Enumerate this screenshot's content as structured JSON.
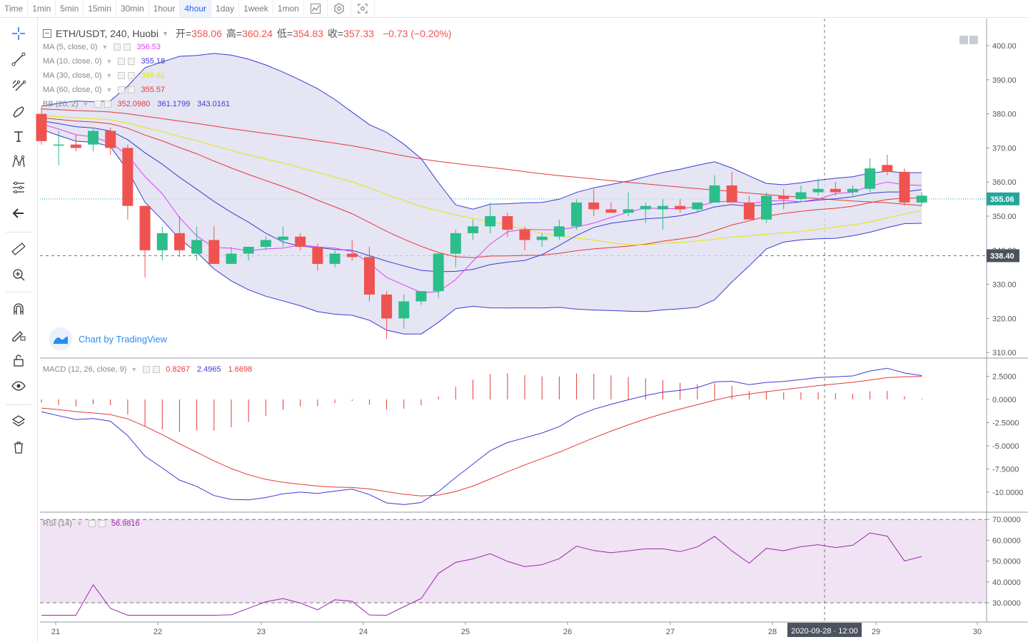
{
  "toolbar": {
    "timeframes": [
      {
        "label": "Time",
        "active": false
      },
      {
        "label": "1min",
        "active": false
      },
      {
        "label": "5min",
        "active": false
      },
      {
        "label": "15min",
        "active": false
      },
      {
        "label": "30min",
        "active": false
      },
      {
        "label": "1hour",
        "active": false
      },
      {
        "label": "4hour",
        "active": true
      },
      {
        "label": "1day",
        "active": false
      },
      {
        "label": "1week",
        "active": false
      },
      {
        "label": "1mon",
        "active": false
      }
    ],
    "icons": [
      "line-chart-icon",
      "settings-icon",
      "fullscreen-icon"
    ]
  },
  "sidebar_tools": [
    "crosshair-icon",
    "trend-line-icon",
    "fib-icon",
    "brush-icon",
    "text-icon",
    "pattern-icon",
    "measure-icon",
    "back-arrow-icon",
    "ruler-icon",
    "zoom-in-icon",
    "magnet-icon",
    "pencil-lock-icon",
    "unlock-icon",
    "eye-icon",
    "layers-icon",
    "trash-icon"
  ],
  "header": {
    "symbol": "ETH/USDT, 240, Huobi",
    "open_label": "开=",
    "open": "358.06",
    "high_label": "高=",
    "high": "360.24",
    "low_label": "低=",
    "low": "354.83",
    "close_label": "收=",
    "close": "357.33",
    "change": "−0.73 (−0.20%)"
  },
  "indicators": [
    {
      "name": "MA (5, close, 0)",
      "values": [
        "356.53"
      ],
      "colors": [
        "#e040fb"
      ]
    },
    {
      "name": "MA (10, close, 0)",
      "values": [
        "355.18"
      ],
      "colors": [
        "#3b3bd6"
      ]
    },
    {
      "name": "MA (30, close, 0)",
      "values": [
        "346.61"
      ],
      "colors": [
        "#e6e600"
      ]
    },
    {
      "name": "MA (60, close, 0)",
      "values": [
        "355.57"
      ],
      "colors": [
        "#e53935"
      ]
    },
    {
      "name": "BB (20, 2)",
      "values": [
        "352.0980",
        "361.1799",
        "343.0161"
      ],
      "colors": [
        "#e53935",
        "#3b3bd6",
        "#3b3bd6"
      ]
    }
  ],
  "watermark": "Chart by TradingView",
  "price_axis": {
    "ticks": [
      "400.00",
      "390.00",
      "380.00",
      "370.00",
      "360.00",
      "350.00",
      "340.00",
      "330.00",
      "320.00",
      "310.00"
    ],
    "current_price_label": "355.06",
    "crosshair_price_label": "338.40"
  },
  "macd": {
    "name": "MACD (12, 26, close, 9)",
    "values": [
      "0.8267",
      "2.4965",
      "1.6698"
    ],
    "ticks": [
      "2.5000",
      "0.0000",
      "-2.5000",
      "-5.0000",
      "-7.5000",
      "-10.0000"
    ]
  },
  "rsi": {
    "name": "RSI (14)",
    "value": "56.9816",
    "ticks": [
      "70.0000",
      "60.0000",
      "50.0000",
      "40.0000",
      "30.0000"
    ]
  },
  "time_axis": {
    "labels": [
      "21",
      "22",
      "23",
      "24",
      "25",
      "26",
      "27",
      "28",
      "29",
      "30"
    ],
    "crosshair_label": "2020-09-28 · 12:00"
  },
  "colors": {
    "up": "#26a69a",
    "up_fill": "#2bbd8a",
    "down": "#ef5350",
    "bb_fill": "#dcdcef",
    "rsi_band": "#f0e3f3",
    "accent": "#2962ff"
  },
  "chart_data": {
    "type": "candlestick",
    "interval": "4hour",
    "x_labels": [
      "21",
      "22",
      "23",
      "24",
      "25",
      "26",
      "27",
      "28",
      "29",
      "30"
    ],
    "ylim": [
      310,
      405
    ],
    "candles": [
      {
        "o": 380,
        "h": 382,
        "l": 371,
        "c": 372
      },
      {
        "o": 371,
        "h": 375,
        "l": 365,
        "c": 371
      },
      {
        "o": 371,
        "h": 374,
        "l": 369,
        "c": 370
      },
      {
        "o": 371,
        "h": 376,
        "l": 369,
        "c": 375
      },
      {
        "o": 375,
        "h": 376,
        "l": 368,
        "c": 370
      },
      {
        "o": 370,
        "h": 371,
        "l": 349,
        "c": 353
      },
      {
        "o": 353,
        "h": 353,
        "l": 332,
        "c": 340
      },
      {
        "o": 340,
        "h": 347,
        "l": 337,
        "c": 345
      },
      {
        "o": 345,
        "h": 350,
        "l": 338,
        "c": 340
      },
      {
        "o": 339,
        "h": 347,
        "l": 337,
        "c": 343
      },
      {
        "o": 343,
        "h": 347,
        "l": 336,
        "c": 336
      },
      {
        "o": 336,
        "h": 341,
        "l": 336,
        "c": 339
      },
      {
        "o": 339,
        "h": 341,
        "l": 337,
        "c": 341
      },
      {
        "o": 341,
        "h": 344,
        "l": 340,
        "c": 343
      },
      {
        "o": 343,
        "h": 347,
        "l": 341,
        "c": 344
      },
      {
        "o": 344,
        "h": 345,
        "l": 340,
        "c": 341
      },
      {
        "o": 341,
        "h": 342,
        "l": 334,
        "c": 336
      },
      {
        "o": 336,
        "h": 340,
        "l": 335,
        "c": 339
      },
      {
        "o": 339,
        "h": 343,
        "l": 337,
        "c": 338
      },
      {
        "o": 338,
        "h": 341,
        "l": 325,
        "c": 327
      },
      {
        "o": 327,
        "h": 328,
        "l": 314,
        "c": 320
      },
      {
        "o": 320,
        "h": 327,
        "l": 317,
        "c": 325
      },
      {
        "o": 325,
        "h": 328,
        "l": 324,
        "c": 328
      },
      {
        "o": 328,
        "h": 339,
        "l": 326,
        "c": 339
      },
      {
        "o": 339,
        "h": 346,
        "l": 335,
        "c": 345
      },
      {
        "o": 345,
        "h": 349,
        "l": 343,
        "c": 347
      },
      {
        "o": 347,
        "h": 354,
        "l": 345,
        "c": 350
      },
      {
        "o": 350,
        "h": 351,
        "l": 344,
        "c": 346
      },
      {
        "o": 346,
        "h": 347,
        "l": 340,
        "c": 343
      },
      {
        "o": 343,
        "h": 345,
        "l": 341,
        "c": 344
      },
      {
        "o": 344,
        "h": 349,
        "l": 343,
        "c": 347
      },
      {
        "o": 347,
        "h": 355,
        "l": 346,
        "c": 354
      },
      {
        "o": 354,
        "h": 358,
        "l": 350,
        "c": 352
      },
      {
        "o": 352,
        "h": 354,
        "l": 351,
        "c": 351
      },
      {
        "o": 351,
        "h": 357,
        "l": 350,
        "c": 352
      },
      {
        "o": 352,
        "h": 354,
        "l": 348,
        "c": 353
      },
      {
        "o": 352,
        "h": 355,
        "l": 346,
        "c": 353
      },
      {
        "o": 353,
        "h": 355,
        "l": 351,
        "c": 352
      },
      {
        "o": 352,
        "h": 354,
        "l": 351,
        "c": 354
      },
      {
        "o": 354,
        "h": 362,
        "l": 354,
        "c": 359
      },
      {
        "o": 359,
        "h": 363,
        "l": 354,
        "c": 354
      },
      {
        "o": 354,
        "h": 356,
        "l": 349,
        "c": 349
      },
      {
        "o": 349,
        "h": 357,
        "l": 348,
        "c": 356
      },
      {
        "o": 356,
        "h": 358,
        "l": 352,
        "c": 355
      },
      {
        "o": 355,
        "h": 359,
        "l": 354,
        "c": 357
      },
      {
        "o": 357,
        "h": 361,
        "l": 356,
        "c": 358
      },
      {
        "o": 358,
        "h": 360,
        "l": 356,
        "c": 357
      },
      {
        "o": 357,
        "h": 359,
        "l": 356,
        "c": 358
      },
      {
        "o": 358,
        "h": 367,
        "l": 357,
        "c": 364
      },
      {
        "o": 365,
        "h": 368,
        "l": 362,
        "c": 363
      },
      {
        "o": 363,
        "h": 364,
        "l": 353,
        "c": 354
      },
      {
        "o": 354,
        "h": 357,
        "l": 353,
        "c": 356
      }
    ]
  }
}
